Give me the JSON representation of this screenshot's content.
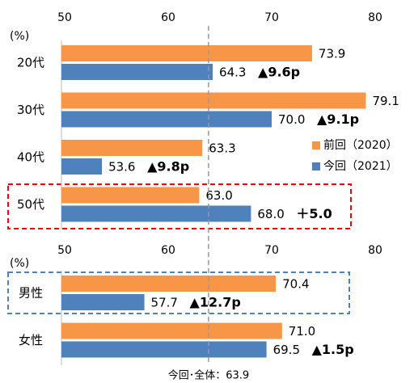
{
  "chart_data": [
    {
      "type": "bar",
      "orientation": "horizontal",
      "unit": "(%)",
      "categories": [
        "20代",
        "30代",
        "40代",
        "50代"
      ],
      "series": [
        {
          "name": "前回（2020）",
          "color": "#f79646",
          "values": [
            73.9,
            79.1,
            63.3,
            63.0
          ],
          "value_labels": [
            "73.9",
            "79.1",
            "63.3",
            "63.0"
          ]
        },
        {
          "name": "今回（2021）",
          "color": "#4f81bd",
          "values": [
            64.3,
            70.0,
            53.6,
            68.0
          ],
          "value_labels": [
            "64.3",
            "70.0",
            "53.6",
            "68.0"
          ]
        }
      ],
      "annotations": [
        {
          "text": "▲9.6p",
          "color": "#0070c0"
        },
        {
          "text": "▲9.1p",
          "color": "#0070c0"
        },
        {
          "text": "▲9.8p",
          "color": "#0070c0"
        },
        {
          "text": "＋5.0",
          "color": "#ff0000"
        }
      ],
      "xlim": [
        50,
        80
      ],
      "xticks": [
        50,
        60,
        70,
        80
      ],
      "legend": "right"
    },
    {
      "type": "bar",
      "orientation": "horizontal",
      "unit": "(%)",
      "categories": [
        "男性",
        "女性"
      ],
      "series": [
        {
          "color": "#f79646",
          "values": [
            70.4,
            71.0
          ],
          "value_labels": [
            "70.4",
            "71.0"
          ]
        },
        {
          "color": "#4f81bd",
          "values": [
            57.7,
            69.5
          ],
          "value_labels": [
            "57.7",
            "69.5"
          ]
        }
      ],
      "annotations": [
        {
          "text": "▲12.7p",
          "color": "#0070c0"
        },
        {
          "text": "▲1.5p",
          "color": "#0070c0"
        }
      ],
      "xlim": [
        50,
        80
      ],
      "xticks": [
        50,
        60,
        70,
        80
      ],
      "reference": {
        "value": 63.9,
        "label": "今回･全体：63.9"
      }
    }
  ]
}
